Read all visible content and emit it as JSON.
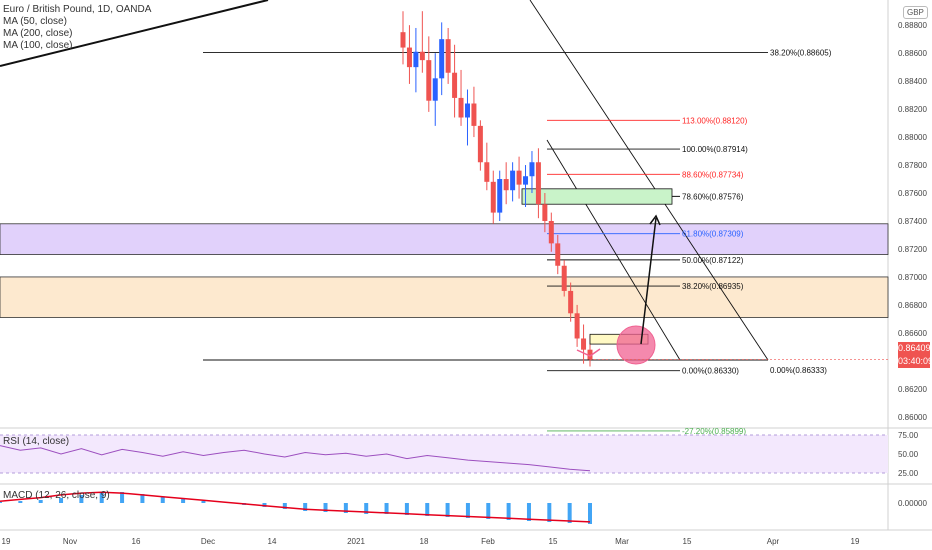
{
  "legend": {
    "title": "Euro / British Pound, 1D, OANDA",
    "ma50": "MA (50, close)",
    "ma200": "MA (200, close)",
    "ma100": "MA (100, close)"
  },
  "currency": "GBP",
  "price_badge": "0.86409",
  "time_badge": "03:40:09",
  "rsi_label": "RSI (14, close)",
  "macd_label": "MACD (12, 26, close, 9)",
  "colors": {
    "up": "#2962ff",
    "down": "#ef5350",
    "purple_zone": "#e1d1fb",
    "orange_zone": "#fde9cf",
    "rsi_line": "#9c4fbf",
    "macd_line": "#e5001c",
    "fib_red": "#ff2525",
    "fib_blue": "#2962ff",
    "fib_green": "#4caf50",
    "green_box": "#c9f3c9",
    "yellow_box": "#fff9c4",
    "circle": "#f06292"
  },
  "chart_data": {
    "type": "candlestick",
    "instrument": "Euro / British Pound",
    "timeframe": "1D",
    "source": "OANDA",
    "y_axis_ticks": [
      "0.88800",
      "0.88600",
      "0.88400",
      "0.88200",
      "0.88000",
      "0.87800",
      "0.87600",
      "0.87400",
      "0.87200",
      "0.87000",
      "0.86800",
      "0.86600",
      "0.86200",
      "0.86000"
    ],
    "y_range": [
      0.8592,
      0.8898
    ],
    "x_axis_labels": [
      "19",
      "Nov",
      "16",
      "Dec",
      "14",
      "2021",
      "18",
      "Feb",
      "15",
      "Mar",
      "15",
      "Apr",
      "19"
    ],
    "last_price": 0.86409,
    "candles": [
      {
        "o": 0.8875,
        "h": 0.889,
        "l": 0.8852,
        "c": 0.8864
      },
      {
        "o": 0.8864,
        "h": 0.888,
        "l": 0.8838,
        "c": 0.885
      },
      {
        "o": 0.885,
        "h": 0.8878,
        "l": 0.8832,
        "c": 0.8861
      },
      {
        "o": 0.8861,
        "h": 0.889,
        "l": 0.8846,
        "c": 0.8855
      },
      {
        "o": 0.8855,
        "h": 0.8872,
        "l": 0.8818,
        "c": 0.8826
      },
      {
        "o": 0.8826,
        "h": 0.886,
        "l": 0.8808,
        "c": 0.8842
      },
      {
        "o": 0.8842,
        "h": 0.8882,
        "l": 0.883,
        "c": 0.887
      },
      {
        "o": 0.887,
        "h": 0.8878,
        "l": 0.8838,
        "c": 0.8846
      },
      {
        "o": 0.8846,
        "h": 0.8866,
        "l": 0.8814,
        "c": 0.8828
      },
      {
        "o": 0.8828,
        "h": 0.8848,
        "l": 0.8808,
        "c": 0.8814
      },
      {
        "o": 0.8814,
        "h": 0.8834,
        "l": 0.8794,
        "c": 0.8824
      },
      {
        "o": 0.8824,
        "h": 0.8836,
        "l": 0.88,
        "c": 0.8808
      },
      {
        "o": 0.8808,
        "h": 0.8812,
        "l": 0.8776,
        "c": 0.8782
      },
      {
        "o": 0.8782,
        "h": 0.8796,
        "l": 0.8762,
        "c": 0.8768
      },
      {
        "o": 0.8768,
        "h": 0.8776,
        "l": 0.8738,
        "c": 0.8746
      },
      {
        "o": 0.8746,
        "h": 0.8776,
        "l": 0.874,
        "c": 0.877
      },
      {
        "o": 0.877,
        "h": 0.8782,
        "l": 0.8752,
        "c": 0.8762
      },
      {
        "o": 0.8762,
        "h": 0.8782,
        "l": 0.8754,
        "c": 0.8776
      },
      {
        "o": 0.8776,
        "h": 0.8786,
        "l": 0.8756,
        "c": 0.8766
      },
      {
        "o": 0.8766,
        "h": 0.878,
        "l": 0.875,
        "c": 0.8772
      },
      {
        "o": 0.8772,
        "h": 0.879,
        "l": 0.876,
        "c": 0.8782
      },
      {
        "o": 0.8782,
        "h": 0.8792,
        "l": 0.8742,
        "c": 0.8752
      },
      {
        "o": 0.8752,
        "h": 0.876,
        "l": 0.8732,
        "c": 0.874
      },
      {
        "o": 0.874,
        "h": 0.8746,
        "l": 0.8718,
        "c": 0.8724
      },
      {
        "o": 0.8724,
        "h": 0.873,
        "l": 0.8702,
        "c": 0.8708
      },
      {
        "o": 0.8708,
        "h": 0.8712,
        "l": 0.8686,
        "c": 0.869
      },
      {
        "o": 0.869,
        "h": 0.8696,
        "l": 0.8668,
        "c": 0.8674
      },
      {
        "o": 0.8674,
        "h": 0.868,
        "l": 0.865,
        "c": 0.8656
      },
      {
        "o": 0.8656,
        "h": 0.8666,
        "l": 0.8638,
        "c": 0.8648
      },
      {
        "o": 0.8648,
        "h": 0.8658,
        "l": 0.8636,
        "c": 0.8641
      }
    ],
    "fib_left": [
      {
        "label": "38.20%(0.88605)",
        "value": 0.88605
      }
    ],
    "fib_right": [
      {
        "label": "113.00%(0.88120)",
        "value": 0.8812,
        "color": "red"
      },
      {
        "label": "100.00%(0.87914)",
        "value": 0.87914,
        "color": "black"
      },
      {
        "label": "88.60%(0.87734)",
        "value": 0.87734,
        "color": "red"
      },
      {
        "label": "78.60%(0.87576)",
        "value": 0.87576,
        "color": "black"
      },
      {
        "label": "61.80%(0.87309)",
        "value": 0.87309,
        "color": "blue"
      },
      {
        "label": "50.00%(0.87122)",
        "value": 0.87122,
        "color": "black"
      },
      {
        "label": "38.20%(0.86935)",
        "value": 0.86935,
        "color": "black"
      },
      {
        "label": "0.00%(0.86330)",
        "value": 0.8633,
        "color": "black"
      },
      {
        "label": "-27.20%(0.85899)",
        "value": 0.85899,
        "color": "green"
      }
    ],
    "fib_far_label": {
      "label": "0.00%(0.86333)",
      "value": 0.86333
    },
    "zones": [
      {
        "name": "purple",
        "from": 0.8716,
        "to": 0.8738
      },
      {
        "name": "orange",
        "from": 0.8671,
        "to": 0.87
      }
    ],
    "rsi_ticks": [
      "75.00",
      "50.00",
      "25.00"
    ],
    "rsi": [
      61,
      55,
      58,
      50,
      57,
      49,
      56,
      52,
      47,
      53,
      48,
      52,
      55,
      50,
      46,
      52,
      49,
      51,
      47,
      50,
      44,
      48,
      45,
      42,
      40,
      38,
      36,
      33,
      30,
      28
    ],
    "macd_ticks": [
      "0.00000"
    ],
    "macd_hist": [
      0.1,
      0.2,
      0.3,
      0.5,
      0.8,
      1.0,
      1.1,
      0.9,
      0.6,
      0.4,
      0.2,
      0.0,
      -0.2,
      -0.4,
      -0.6,
      -0.8,
      -0.9,
      -1.0,
      -1.1,
      -1.1,
      -1.2,
      -1.3,
      -1.4,
      -1.5,
      -1.6,
      -1.7,
      -1.8,
      -1.9,
      -2.0,
      -2.1
    ],
    "macd_line": [
      0.2,
      0.4,
      0.6,
      0.9,
      1.1,
      1.2,
      1.1,
      0.9,
      0.7,
      0.5,
      0.3,
      0.1,
      -0.1,
      -0.3,
      -0.5,
      -0.7,
      -0.8,
      -0.9,
      -1.0,
      -1.1,
      -1.2,
      -1.3,
      -1.4,
      -1.5,
      -1.6,
      -1.7,
      -1.8,
      -1.9,
      -2.0,
      -2.1
    ]
  }
}
